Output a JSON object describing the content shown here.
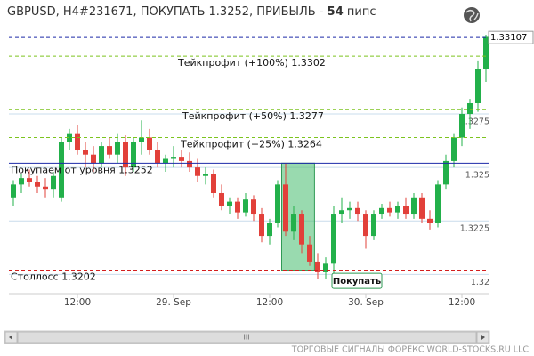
{
  "chart_data": {
    "type": "candlestick",
    "title": "GBPUSD, H4#231671, ПОКУПАТЬ 1.3252, ПРИБЫЛЬ -",
    "title_value": "54",
    "title_unit": "пипс",
    "categories": [
      null,
      null,
      null,
      null,
      null,
      null,
      null,
      null,
      "12:00",
      null,
      null,
      null,
      null,
      null,
      null,
      null,
      null,
      null,
      null,
      null,
      "29. Sep",
      null,
      null,
      null,
      null,
      null,
      null,
      null,
      null,
      null,
      null,
      null,
      "12:00",
      null,
      null,
      null,
      null,
      null,
      null,
      null,
      null,
      null,
      null,
      null,
      "30. Sep",
      null,
      null,
      null,
      null,
      null,
      null,
      null,
      null,
      null,
      null,
      null,
      "12:00",
      null,
      null,
      null
    ],
    "open": [
      1.3236,
      1.3242,
      1.3245,
      1.3243,
      1.3241,
      1.324,
      1.3236,
      1.3262,
      1.3266,
      1.3258,
      1.3256,
      1.3252,
      1.326,
      1.3256,
      1.3262,
      1.325,
      1.3262,
      1.3264,
      1.3258,
      1.3252,
      1.3254,
      1.3255,
      1.3253,
      1.325,
      1.3246,
      1.3247,
      1.3238,
      1.3232,
      1.3234,
      1.3229,
      1.3235,
      1.3228,
      1.3218,
      1.3224,
      1.3242,
      1.322,
      1.3228,
      1.3214,
      1.3206,
      1.3201,
      1.3205,
      1.3228,
      1.323,
      1.3231,
      1.3228,
      1.3218,
      1.3228,
      1.3231,
      1.3229,
      1.3232,
      1.3228,
      1.3236,
      1.3226,
      1.3224,
      1.3242,
      1.3253,
      1.3264,
      1.3275,
      1.328,
      1.3296
    ],
    "high": [
      1.3244,
      1.3247,
      1.3249,
      1.3246,
      1.3245,
      1.3248,
      1.3264,
      1.3268,
      1.327,
      1.3262,
      1.326,
      1.3262,
      1.3264,
      1.3266,
      1.3265,
      1.3264,
      1.3272,
      1.3268,
      1.3262,
      1.3256,
      1.326,
      1.3258,
      1.3257,
      1.3254,
      1.325,
      1.3249,
      1.3242,
      1.3236,
      1.3236,
      1.3238,
      1.3237,
      1.3231,
      1.3226,
      1.3244,
      1.3252,
      1.3232,
      1.323,
      1.3218,
      1.321,
      1.3208,
      1.3232,
      1.3236,
      1.3234,
      1.3234,
      1.323,
      1.323,
      1.3233,
      1.3234,
      1.3234,
      1.3236,
      1.3238,
      1.3238,
      1.323,
      1.3244,
      1.3256,
      1.3266,
      1.3278,
      1.3282,
      1.33,
      1.3312
    ],
    "low": [
      1.3232,
      1.3238,
      1.3241,
      1.3238,
      1.3236,
      1.3236,
      1.3234,
      1.3258,
      1.3256,
      1.325,
      1.3248,
      1.325,
      1.3254,
      1.3252,
      1.3246,
      1.3248,
      1.3256,
      1.3256,
      1.325,
      1.3248,
      1.325,
      1.325,
      1.3248,
      1.3243,
      1.3242,
      1.3236,
      1.323,
      1.3228,
      1.3226,
      1.3227,
      1.3225,
      1.3215,
      1.3214,
      1.3222,
      1.3218,
      1.3216,
      1.321,
      1.3204,
      1.3198,
      1.3198,
      1.32,
      1.3224,
      1.3226,
      1.3225,
      1.3212,
      1.3216,
      1.3226,
      1.3227,
      1.3226,
      1.3226,
      1.3226,
      1.3224,
      1.3221,
      1.3222,
      1.324,
      1.325,
      1.326,
      1.3268,
      1.3276,
      1.329
    ],
    "close": [
      1.3242,
      1.3245,
      1.3243,
      1.3241,
      1.324,
      1.3246,
      1.3262,
      1.3266,
      1.3258,
      1.3256,
      1.3252,
      1.326,
      1.3256,
      1.3262,
      1.325,
      1.3262,
      1.3264,
      1.3258,
      1.3252,
      1.3254,
      1.3255,
      1.3253,
      1.325,
      1.3246,
      1.3247,
      1.3238,
      1.3232,
      1.3234,
      1.3229,
      1.3235,
      1.3228,
      1.3218,
      1.3224,
      1.3242,
      1.322,
      1.3228,
      1.3214,
      1.3206,
      1.3201,
      1.3205,
      1.3228,
      1.323,
      1.3231,
      1.3228,
      1.3218,
      1.3228,
      1.3231,
      1.3229,
      1.3232,
      1.3228,
      1.3236,
      1.3226,
      1.3224,
      1.3242,
      1.3253,
      1.3264,
      1.3275,
      1.328,
      1.3296,
      1.3311
    ],
    "up_color": "#22b04a",
    "down_color": "#e2403a",
    "ylim": [
      1.3191,
      1.3322
    ],
    "yticks": [
      1.32,
      1.3225,
      1.325,
      1.3275
    ],
    "grid": true,
    "last_price": 1.33107,
    "last_price_color": "#1c2aa8",
    "levels": [
      {
        "value": 1.3302,
        "label": "Тейкпрофит (+100%) 1.3302",
        "color": "#7cc41e",
        "style": "dashed"
      },
      {
        "value": 1.3277,
        "label": "Тейкпрофит (+50%) 1.3277",
        "color": "#7cc41e",
        "style": "dashed"
      },
      {
        "value": 1.3264,
        "label": "Тейкпрофит (+25%) 1.3264",
        "color": "#7cc41e",
        "style": "dashed"
      },
      {
        "value": 1.3252,
        "label": "Покупаем от уровня 1.3252",
        "color": "#1c2aa8",
        "style": "solid"
      },
      {
        "value": 1.3202,
        "label": "Столлосс 1.3202",
        "color": "#d41e1e",
        "style": "dashed"
      }
    ],
    "signal_label": "Покупать",
    "footer": "ТОРГОВЫЕ СИГНАЛЫ ФОРЕКС WORLD-STOCKS.RU LLC",
    "scrollbar_label": "III"
  }
}
